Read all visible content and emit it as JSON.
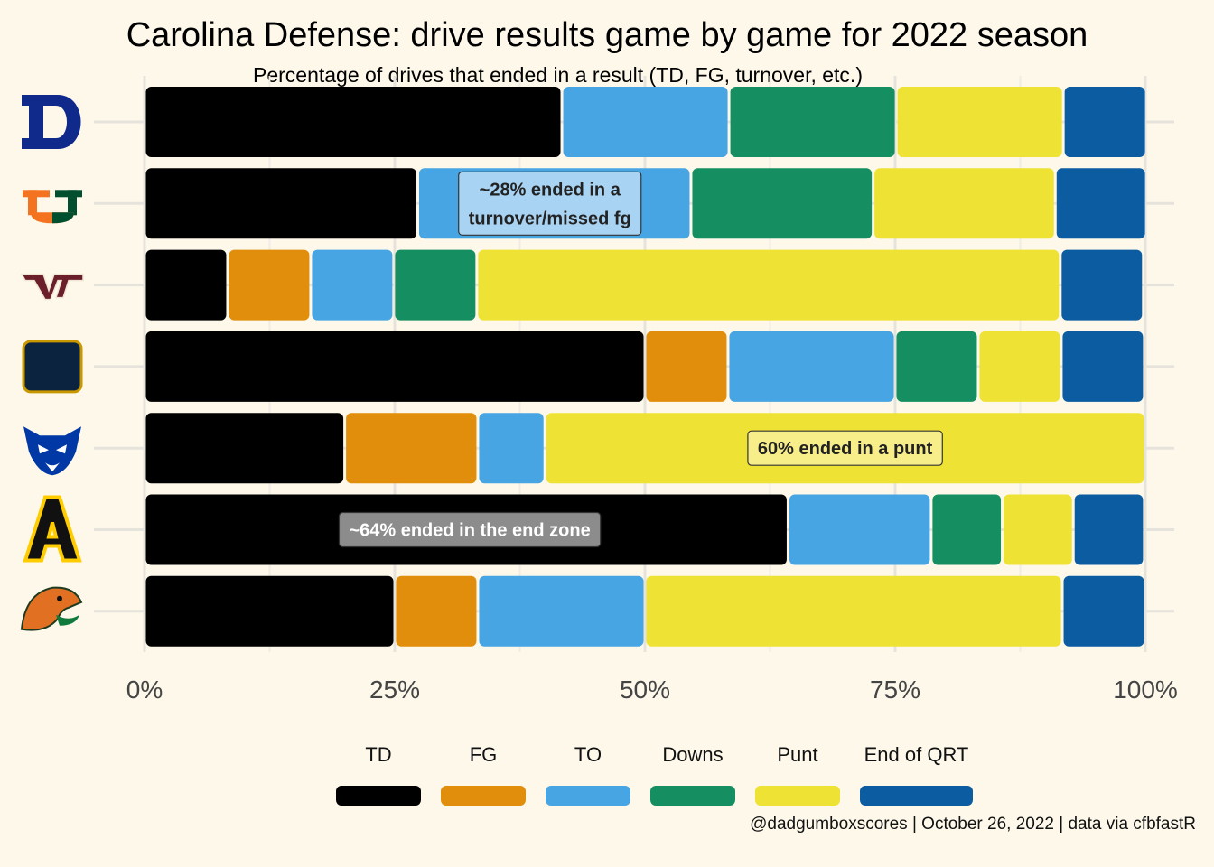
{
  "title": "Carolina Defense: drive results game by game for 2022 season",
  "subtitle": "Percentage of drives that ended in a result (TD, FG, turnover, etc.)",
  "caption": "@dadgumboxscores | October 26, 2022 | data via cfbfastR",
  "chart_data": {
    "type": "bar",
    "orientation": "horizontal",
    "stacked": true,
    "percent_axis": true,
    "xlim": [
      0,
      100
    ],
    "x_ticks": [
      "0%",
      "25%",
      "50%",
      "75%",
      "100%"
    ],
    "grid": true,
    "legend_position": "bottom",
    "categories": [
      "Duke",
      "Miami",
      "Virginia Tech",
      "Notre Dame",
      "Georgia State",
      "App State",
      "Florida A&M"
    ],
    "category_logos": [
      "duke-logo",
      "miami-logo",
      "virginia-tech-logo",
      "notre-dame-logo",
      "georgia-state-logo",
      "app-state-logo",
      "florida-am-logo"
    ],
    "series": [
      {
        "name": "TD",
        "color": "#000000",
        "values": [
          41.7,
          27.3,
          8.3,
          50.0,
          20.0,
          64.3,
          25.0
        ]
      },
      {
        "name": "FG",
        "color": "#e08e0b",
        "values": [
          0,
          0,
          8.3,
          8.3,
          13.3,
          0,
          8.3
        ]
      },
      {
        "name": "TO",
        "color": "#48a5e3",
        "values": [
          16.7,
          27.3,
          8.3,
          16.7,
          6.7,
          14.3,
          16.7
        ]
      },
      {
        "name": "Downs",
        "color": "#158f61",
        "values": [
          16.7,
          18.2,
          8.3,
          8.3,
          0,
          7.1,
          0
        ]
      },
      {
        "name": "Punt",
        "color": "#eee234",
        "values": [
          16.7,
          18.2,
          58.3,
          8.3,
          60.0,
          7.1,
          41.7
        ]
      },
      {
        "name": "End of QRT",
        "color": "#0b5ca1",
        "values": [
          8.3,
          9.1,
          8.3,
          8.3,
          0,
          7.1,
          8.3
        ]
      }
    ],
    "annotations": [
      {
        "text_lines": [
          "~28% ended in a",
          "turnover/missed fg"
        ],
        "row": 1,
        "x": 40.5,
        "bg": "#a9d3f2",
        "color": "#222222"
      },
      {
        "text_lines": [
          "60% ended in a punt"
        ],
        "row": 4,
        "x": 70.0,
        "bg": "#f7ee8a",
        "color": "#222222"
      },
      {
        "text_lines": [
          "~64% ended in the end zone"
        ],
        "row": 5,
        "x": 32.5,
        "bg": "#8c8c8c",
        "color": "#ffffff"
      }
    ]
  }
}
